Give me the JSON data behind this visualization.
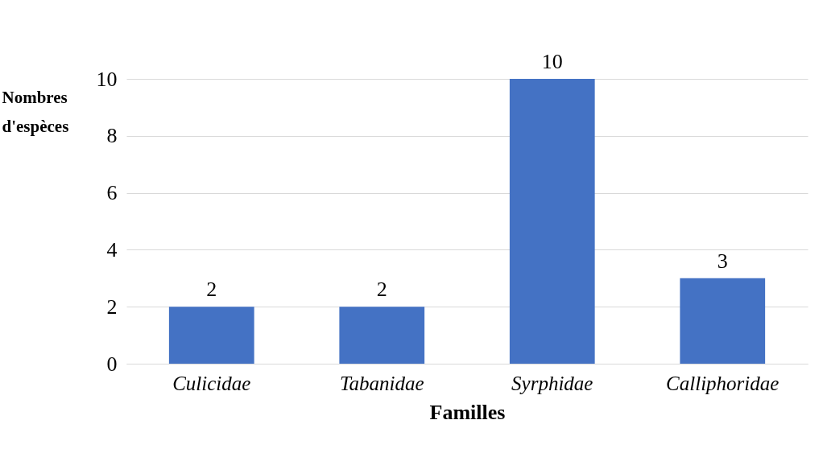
{
  "chart_data": {
    "type": "bar",
    "xlabel": "Familles",
    "ylabel": "Nombres d'espèces",
    "categories": [
      "Culicidae",
      "Tabanidae",
      "Syrphidae",
      "Calliphoridae"
    ],
    "values": [
      2,
      2,
      10,
      3
    ],
    "color": "#4472c4",
    "ylim": [
      0,
      10
    ],
    "yticks": [
      0,
      2,
      4,
      6,
      8,
      10
    ],
    "grid": "y",
    "data_labels": true
  }
}
